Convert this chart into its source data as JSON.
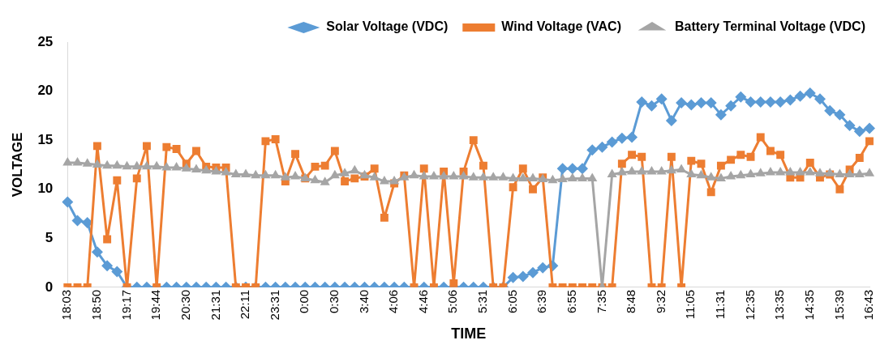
{
  "chart_data": {
    "type": "line",
    "xlabel": "TIME",
    "ylabel": "VOLTAGE",
    "legend": "top right",
    "categories": [
      "18:03",
      null,
      null,
      "18:50",
      null,
      null,
      "19:17",
      null,
      null,
      "19:44",
      null,
      null,
      "20:30",
      null,
      null,
      "21:31",
      null,
      null,
      "22:11",
      null,
      null,
      "23:31",
      null,
      null,
      "0:00",
      null,
      null,
      "0:30",
      null,
      null,
      "3:40",
      null,
      null,
      "4:06",
      null,
      null,
      "4:46",
      null,
      null,
      "5:06",
      null,
      null,
      "5:31",
      null,
      null,
      "6:05",
      null,
      null,
      "6:39",
      null,
      null,
      "6:55",
      null,
      null,
      "7:35",
      null,
      null,
      "8:48",
      null,
      null,
      "9:32",
      null,
      null,
      "11:05",
      null,
      null,
      "11:31",
      null,
      null,
      "12:35",
      null,
      null,
      "13:35",
      null,
      null,
      "14:35",
      null,
      null,
      "15:39",
      null,
      null,
      "16:43"
    ],
    "ylim": [
      0,
      25
    ],
    "yticks": [
      0,
      5,
      10,
      15,
      20,
      25
    ],
    "series": [
      {
        "name": "Solar Voltage (VDC)",
        "color": "#5b9bd5",
        "marker": "diamond",
        "values": [
          8.7,
          6.8,
          6.6,
          3.6,
          2.2,
          1.6,
          0,
          0,
          0,
          0,
          0,
          0,
          0,
          0,
          0,
          0,
          0,
          0,
          0,
          0,
          0,
          0,
          0,
          0,
          0,
          0,
          0,
          0,
          0,
          0,
          0,
          0,
          0,
          0,
          0,
          0,
          0,
          0,
          0,
          0,
          0,
          0,
          0,
          0,
          0,
          1.0,
          1.1,
          1.5,
          2.0,
          2.2,
          12.1,
          12.1,
          12.1,
          14.0,
          14.3,
          14.8,
          15.2,
          15.3,
          18.9,
          18.5,
          19.2,
          17.0,
          18.8,
          18.6,
          18.8,
          18.8,
          17.6,
          18.5,
          19.4,
          18.9,
          18.9,
          18.9,
          18.9,
          19.1,
          19.5,
          19.8,
          19.2,
          18.0,
          17.6,
          16.5,
          15.9,
          16.2
        ]
      },
      {
        "name": "Wind Voltage (VAC)",
        "color": "#ed7d31",
        "marker": "square",
        "values": [
          0,
          0,
          0,
          14.4,
          4.9,
          10.9,
          0,
          11.1,
          14.4,
          0,
          14.3,
          14.1,
          12.6,
          13.9,
          12.3,
          12.2,
          12.2,
          0,
          0,
          0,
          14.9,
          15.1,
          10.8,
          13.6,
          11.1,
          12.3,
          12.4,
          13.9,
          10.8,
          11.1,
          11.3,
          12.1,
          7.1,
          10.6,
          11.4,
          0,
          12.1,
          0,
          11.8,
          0.4,
          11.8,
          15.0,
          12.4,
          0,
          0,
          10.2,
          12.1,
          10.0,
          11.2,
          0,
          0,
          0,
          0,
          0,
          0,
          0,
          12.6,
          13.5,
          13.3,
          0,
          0,
          13.3,
          0,
          12.9,
          12.6,
          9.7,
          12.4,
          13.0,
          13.5,
          13.3,
          15.3,
          13.9,
          13.5,
          11.2,
          11.2,
          12.7,
          11.2,
          11.5,
          10.0,
          12.0,
          13.2,
          14.9
        ]
      },
      {
        "name": "Battery Terminal Voltage (VDC)",
        "color": "#a5a5a5",
        "marker": "triangle",
        "values": [
          12.7,
          12.7,
          12.6,
          12.5,
          12.4,
          12.4,
          12.3,
          12.3,
          12.3,
          12.3,
          12.2,
          12.2,
          12.1,
          12.0,
          11.9,
          11.8,
          11.7,
          11.5,
          11.5,
          11.4,
          11.4,
          11.4,
          11.2,
          11.3,
          11.1,
          10.9,
          10.7,
          11.4,
          11.6,
          11.9,
          11.4,
          11.2,
          10.8,
          10.8,
          11.2,
          11.4,
          11.3,
          11.3,
          11.3,
          11.3,
          11.3,
          11.2,
          11.2,
          11.2,
          11.2,
          11.1,
          11.1,
          11.1,
          11.0,
          10.9,
          11.0,
          11.1,
          11.1,
          11.1,
          0,
          11.5,
          11.7,
          11.8,
          11.8,
          11.8,
          11.8,
          11.9,
          12.0,
          11.5,
          11.4,
          11.2,
          11.1,
          11.3,
          11.4,
          11.5,
          11.6,
          11.7,
          11.7,
          11.7,
          11.7,
          11.7,
          11.6,
          11.6,
          11.5,
          11.5,
          11.5,
          11.6
        ]
      }
    ]
  }
}
